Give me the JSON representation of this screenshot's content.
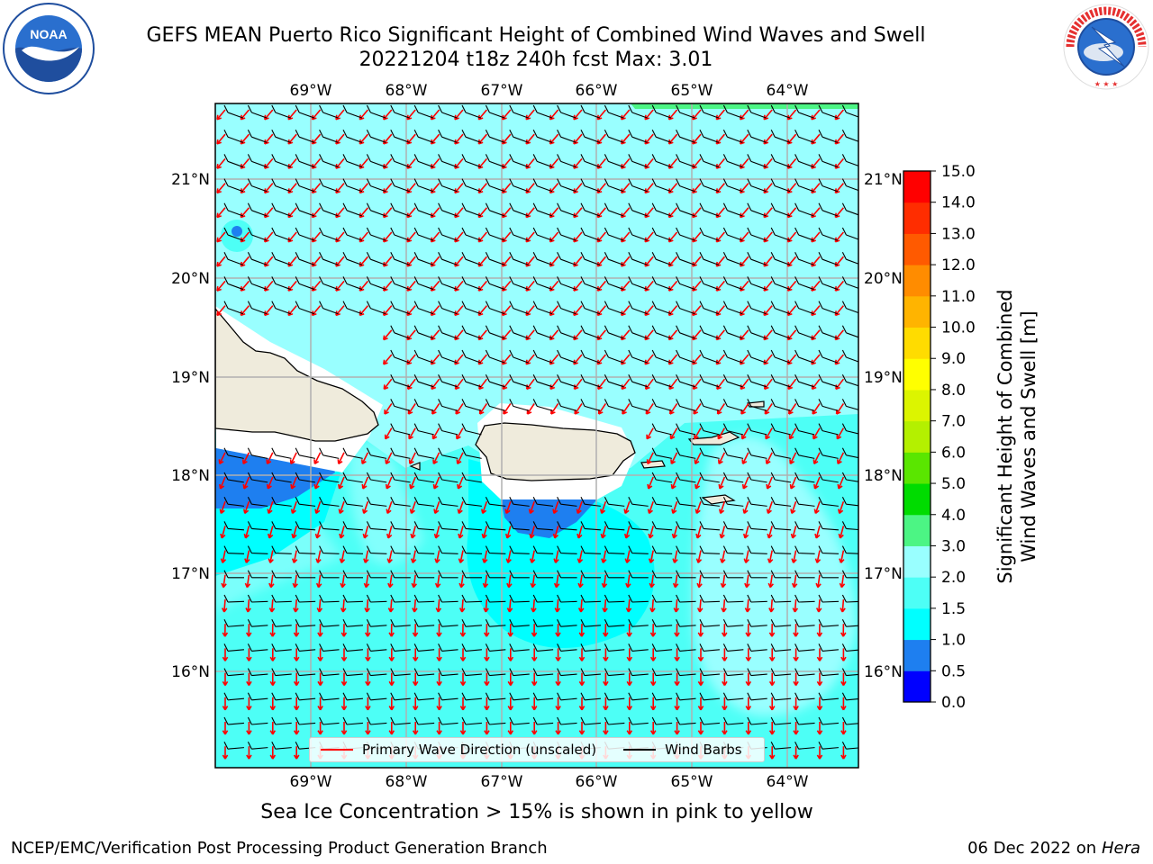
{
  "header": {
    "title_line1": "GEFS MEAN Puerto Rico Significant Height of Combined Wind Waves and Swell",
    "title_line2": "20221204 t18z 240h fcst   Max: 3.01"
  },
  "map": {
    "lon_labels": [
      "69°W",
      "68°W",
      "67°W",
      "66°W",
      "65°W",
      "64°W"
    ],
    "lat_labels": [
      "21°N",
      "20°N",
      "19°N",
      "18°N",
      "17°N",
      "16°N"
    ],
    "ocean_color": "#99ffff",
    "land_color": "#efebdc"
  },
  "colorbar": {
    "label": "Significant Height of Combined Wind Waves and Swell [m]",
    "label_line1": "Significant Height of Combined",
    "label_line2": "Wind Waves and Swell [m]",
    "ticks": [
      "0.0",
      "0.5",
      "1.0",
      "1.5",
      "2.0",
      "3.0",
      "4.0",
      "5.0",
      "6.0",
      "7.0",
      "8.0",
      "9.0",
      "10.0",
      "11.0",
      "12.0",
      "13.0",
      "14.0",
      "15.0"
    ],
    "colors": [
      "#0000ff",
      "#1e7ff0",
      "#00ffff",
      "#4dfff6",
      "#99ffff",
      "#4cf584",
      "#00dc00",
      "#5ae600",
      "#b4f000",
      "#dcf500",
      "#ffff00",
      "#ffdc00",
      "#ffb400",
      "#ff8c00",
      "#ff5a00",
      "#ff2d00",
      "#ff0000"
    ]
  },
  "legend": {
    "wave_direction": "Primary Wave Direction (unscaled)",
    "wind_barbs": "Wind Barbs",
    "wave_color": "#ff0000",
    "barb_color": "#000000"
  },
  "subtitle": "Sea Ice Concentration > 15% is shown in pink to yellow",
  "footer": {
    "left": "NCEP/EMC/Verification Post Processing Product Generation Branch",
    "right_date": "06 Dec 2022 on",
    "right_host": "Hera"
  },
  "logos": {
    "noaa_text": "NOAA",
    "nws_text": "NATIONAL WEATHER SERVICE"
  }
}
